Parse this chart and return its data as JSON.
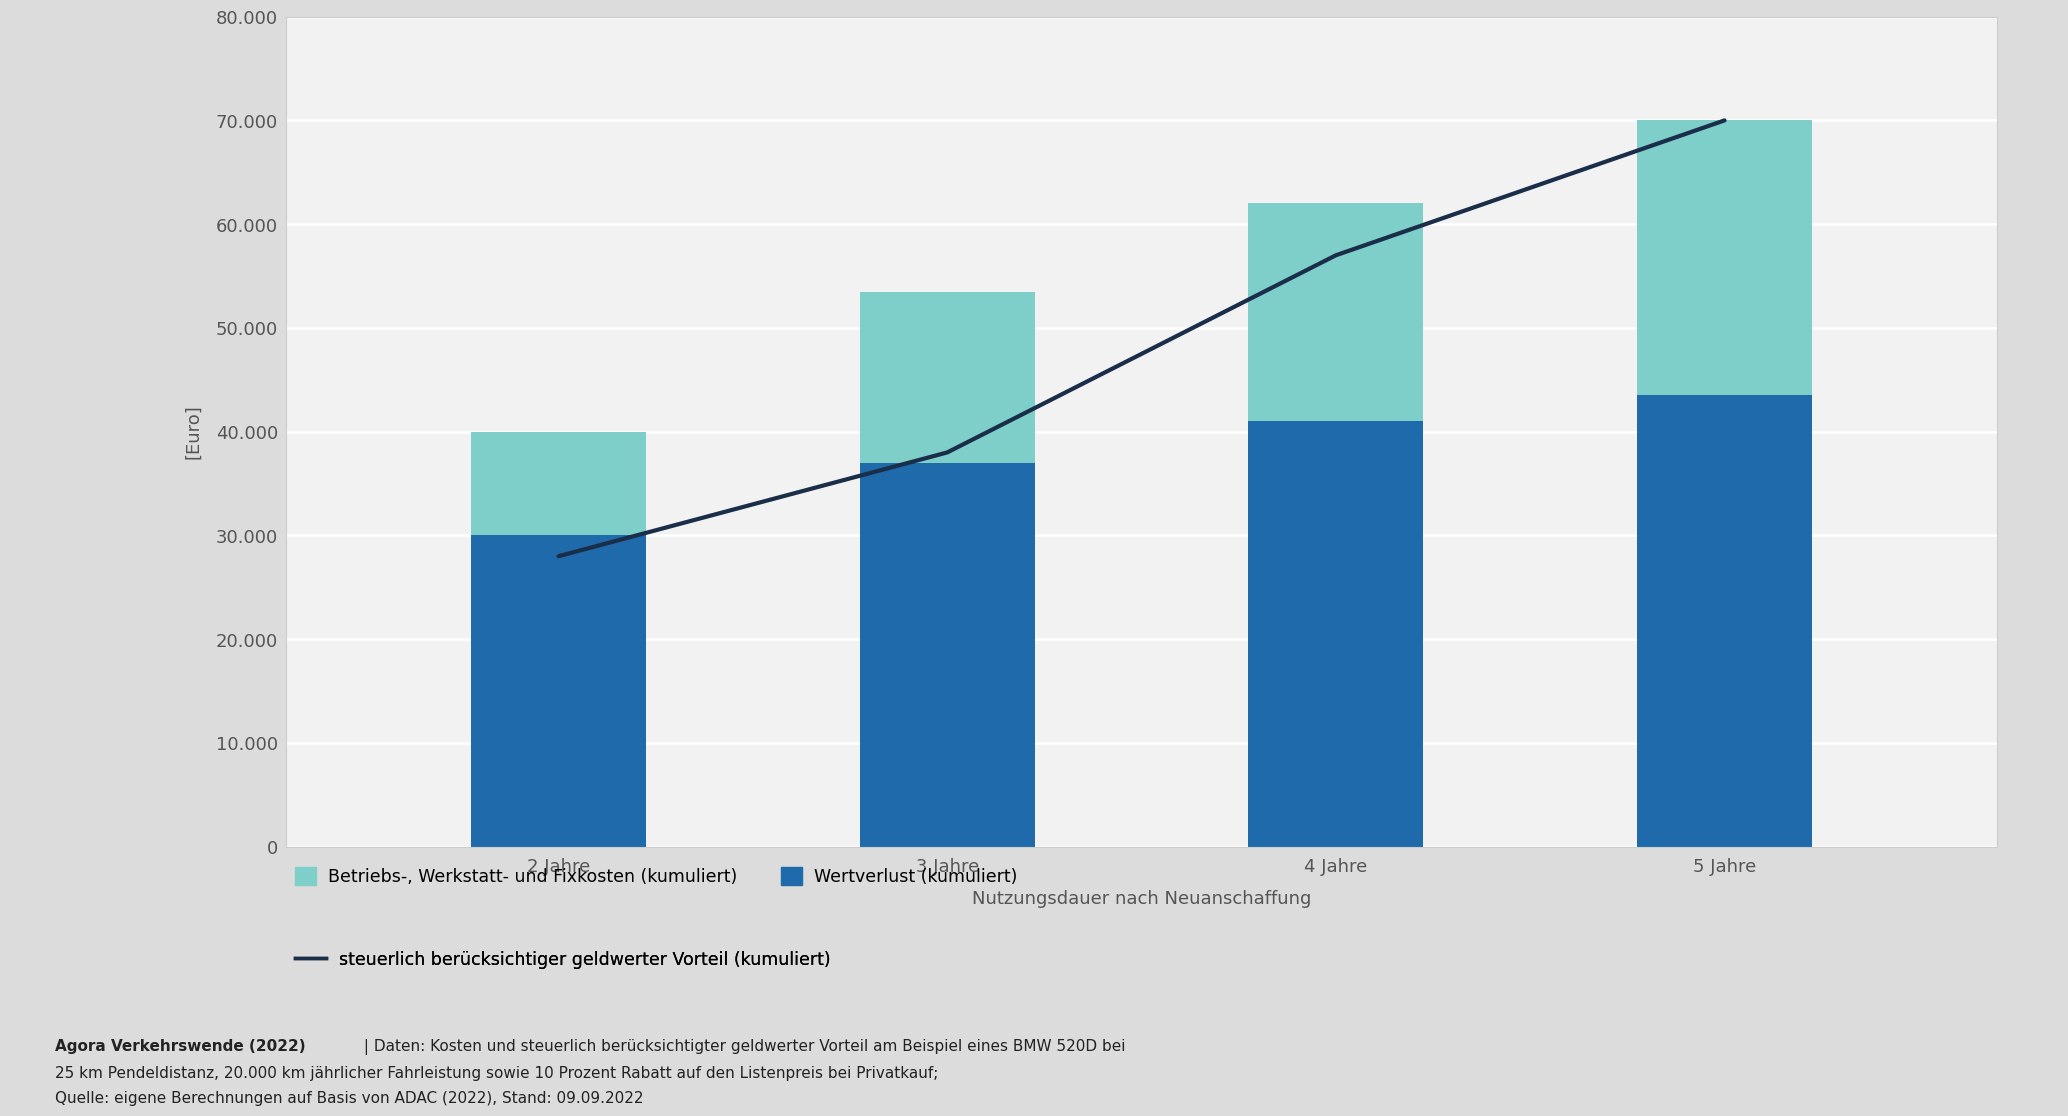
{
  "categories": [
    "2 Jahre",
    "3 Jahre",
    "4 Jahre",
    "5 Jahre"
  ],
  "wertverlust": [
    30000,
    37000,
    41000,
    43500
  ],
  "betrieb": [
    10000,
    16500,
    21000,
    26500
  ],
  "line_values": [
    28000,
    38000,
    57000,
    70000
  ],
  "bar_color_blue": "#1f6aab",
  "bar_color_teal": "#7ececa",
  "line_color": "#1a2e4a",
  "bg_outer": "#dcdcdc",
  "bg_chart": "#f2f2f2",
  "bg_footnote": "#e8e8e8",
  "ylabel": "[Euro]",
  "xlabel": "Nutzungsdauer nach Neuanschaffung",
  "ylim": [
    0,
    80000
  ],
  "yticks": [
    0,
    10000,
    20000,
    30000,
    40000,
    50000,
    60000,
    70000,
    80000
  ],
  "legend_label_teal": "Betriebs-, Werkstatt- und Fixkosten (kumuliert)",
  "legend_label_blue": "Wertverlust (kumuliert)",
  "legend_label_line": "steuerlich berücksichtiger geldwerter Vorteil (kumuliert)",
  "footnote_bold": "Agora Verkehrswende (2022)",
  "footnote_rest": " | Daten: Kosten und steuerlich berücksichtigter geldwerter Vorteil am Beispiel eines BMW 520D bei",
  "footnote_line2": "25 km Pendeldistanz, 20.000 km jährlicher Fahrleistung sowie 10 Prozent Rabatt auf den Listenpreis bei Privatkauf;",
  "footnote_line3": "Quelle: eigene Berechnungen auf Basis von ADAC (2022), Stand: 09.09.2022",
  "bar_width": 0.45,
  "tick_color": "#555555",
  "tick_fontsize": 13,
  "label_fontsize": 13,
  "legend_fontsize": 12.5
}
